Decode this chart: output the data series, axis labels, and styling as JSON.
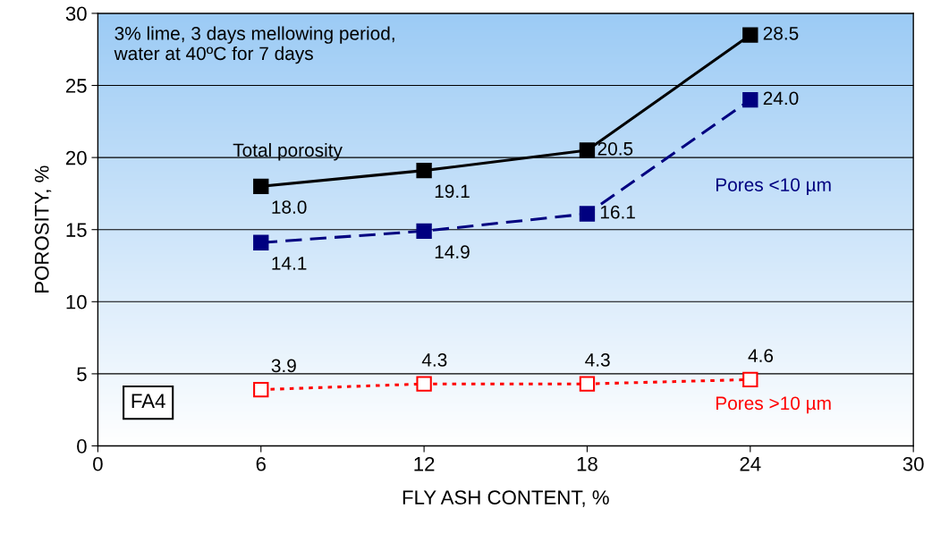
{
  "chart_data": {
    "type": "line",
    "xlabel": "FLY ASH CONTENT, %",
    "ylabel": "POROSITY, %",
    "x": [
      6,
      12,
      18,
      24
    ],
    "series": [
      {
        "name": "Total porosity",
        "color": "#000000",
        "line_style": "solid",
        "values": [
          18.0,
          19.1,
          20.5,
          28.5
        ],
        "value_labels": [
          "18.0",
          "19.1",
          "20.5",
          "28.5"
        ]
      },
      {
        "name": "Pores <10 µm",
        "color": "#000080",
        "line_style": "dashed",
        "values": [
          14.1,
          14.9,
          16.1,
          24.0
        ],
        "value_labels": [
          "14.1",
          "14.9",
          "16.1",
          "24.0"
        ]
      },
      {
        "name": "Pores >10 µm",
        "color": "#ff0000",
        "line_style": "dotted",
        "values": [
          3.9,
          4.3,
          4.3,
          4.6
        ],
        "value_labels": [
          "3.9",
          "4.3",
          "4.3",
          "4.6"
        ]
      }
    ],
    "marker": "square",
    "grid": "y",
    "xlim": [
      0,
      30
    ],
    "xticks": [
      0,
      6,
      12,
      18,
      24,
      30
    ],
    "ylim": [
      0,
      30
    ],
    "yticks": [
      0,
      5,
      10,
      15,
      20,
      25,
      30
    ],
    "annotations": [
      "3% lime, 3 days mellowing period,\nwater at 40ºC for 7 days",
      "FA4"
    ]
  }
}
